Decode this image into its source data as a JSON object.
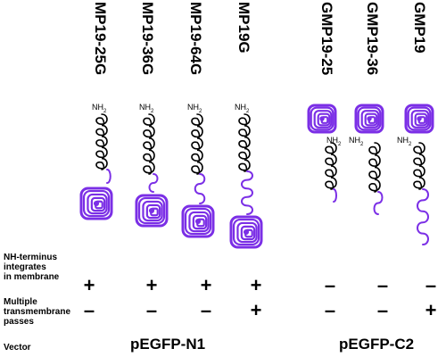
{
  "columns": [
    {
      "name": "MP19-25G"
    },
    {
      "name": "MP19-36G"
    },
    {
      "name": "MP19-64G"
    },
    {
      "name": "MP19G"
    },
    {
      "name": "GMP19-25"
    },
    {
      "name": "GMP19-36"
    },
    {
      "name": "GMP19"
    }
  ],
  "nh2": {
    "main": "NH",
    "sub": "2"
  },
  "rows": [
    {
      "label_lines": [
        "NH-terminus",
        "integrates",
        "in membrane"
      ],
      "values": [
        "+",
        "+",
        "+",
        "+",
        "–",
        "–",
        "–"
      ]
    },
    {
      "label_lines": [
        "Multiple",
        "transmembrane",
        "passes"
      ],
      "values": [
        "–",
        "–",
        "–",
        "+",
        "–",
        "–",
        "+"
      ]
    },
    {
      "label": "Vector"
    }
  ],
  "vectors": [
    "pEGFP-N1",
    "pEGFP-C2"
  ],
  "colors": {
    "gfp": "#7b2fe6",
    "protein": "#000000",
    "background": "#ffffff"
  }
}
